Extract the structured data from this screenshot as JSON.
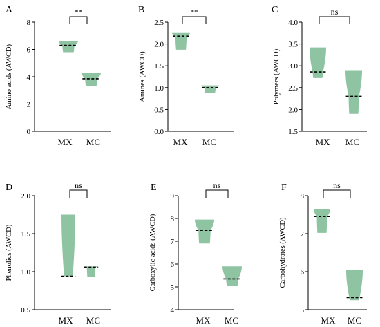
{
  "chart_data": [
    {
      "type": "violin",
      "panel_label": "A",
      "ylabel": "Amino acids (AWCD)",
      "ylim": [
        0,
        8
      ],
      "yticks": [
        0,
        2,
        4,
        6,
        8
      ],
      "ytick_labels": [
        "0",
        "2",
        "4",
        "6",
        "8"
      ],
      "categories": [
        "MX",
        "MC"
      ],
      "series": [
        {
          "min": 5.8,
          "max": 6.6,
          "median": 6.3,
          "color": "#8fc4a2"
        },
        {
          "min": 3.3,
          "max": 4.3,
          "median": 3.85,
          "color": "#8fc4a2"
        }
      ],
      "significance": "**"
    },
    {
      "type": "violin",
      "panel_label": "B",
      "ylabel": "Amines (AWCD)",
      "ylim": [
        0.0,
        2.5
      ],
      "yticks": [
        0,
        0.5,
        1,
        1.5,
        2,
        2.5
      ],
      "ytick_labels": [
        "0.0",
        "0.5",
        "1.0",
        "1.5",
        "2.0",
        "2.5"
      ],
      "categories": [
        "MX",
        "MC"
      ],
      "series": [
        {
          "min": 1.87,
          "max": 2.25,
          "median": 2.18,
          "color": "#8fc4a2"
        },
        {
          "min": 0.88,
          "max": 1.05,
          "median": 1.0,
          "color": "#8fc4a2"
        }
      ],
      "significance": "**"
    },
    {
      "type": "violin",
      "panel_label": "C",
      "ylabel": "Polymers (AWCD)",
      "ylim": [
        1.5,
        4.0
      ],
      "yticks": [
        1.5,
        2,
        2.5,
        3,
        3.5,
        4
      ],
      "ytick_labels": [
        "1.5",
        "2.0",
        "2.5",
        "3.0",
        "3.5",
        "4.0"
      ],
      "categories": [
        "MX",
        "MC"
      ],
      "series": [
        {
          "min": 2.72,
          "max": 3.42,
          "median": 2.86,
          "color": "#8fc4a2"
        },
        {
          "min": 1.9,
          "max": 2.9,
          "median": 2.3,
          "color": "#8fc4a2"
        }
      ],
      "significance": "ns"
    },
    {
      "type": "violin",
      "panel_label": "D",
      "ylabel": "Phenolics (AWCD)",
      "ylim": [
        0.5,
        2.0
      ],
      "yticks": [
        0.5,
        1,
        1.5,
        2
      ],
      "ytick_labels": [
        "0.5",
        "1.0",
        "1.5",
        "2.0"
      ],
      "categories": [
        "MX",
        "MC"
      ],
      "series": [
        {
          "min": 0.94,
          "max": 1.75,
          "median": 0.94,
          "color": "#8fc4a2"
        },
        {
          "min": 0.93,
          "max": 1.07,
          "median": 1.06,
          "color": "#8fc4a2"
        }
      ],
      "significance": "ns"
    },
    {
      "type": "violin",
      "panel_label": "E",
      "ylabel": "Carboxylic acids (AWCD)",
      "ylim": [
        4,
        9
      ],
      "yticks": [
        4,
        5,
        6,
        7,
        8,
        9
      ],
      "ytick_labels": [
        "4",
        "5",
        "6",
        "7",
        "8",
        "9"
      ],
      "categories": [
        "MX",
        "MC"
      ],
      "series": [
        {
          "min": 6.9,
          "max": 7.95,
          "median": 7.48,
          "color": "#8fc4a2"
        },
        {
          "min": 5.05,
          "max": 5.9,
          "median": 5.35,
          "color": "#8fc4a2"
        }
      ],
      "significance": "ns"
    },
    {
      "type": "violin",
      "panel_label": "F",
      "ylabel": "Carbohydrates (AWCD)",
      "ylim": [
        5,
        8
      ],
      "yticks": [
        5,
        6,
        7,
        8
      ],
      "ytick_labels": [
        "5",
        "6",
        "7",
        "8"
      ],
      "categories": [
        "MX",
        "MC"
      ],
      "series": [
        {
          "min": 7.02,
          "max": 7.65,
          "median": 7.45,
          "color": "#8fc4a2"
        },
        {
          "min": 5.25,
          "max": 6.05,
          "median": 5.32,
          "color": "#8fc4a2"
        }
      ],
      "significance": "ns"
    }
  ]
}
